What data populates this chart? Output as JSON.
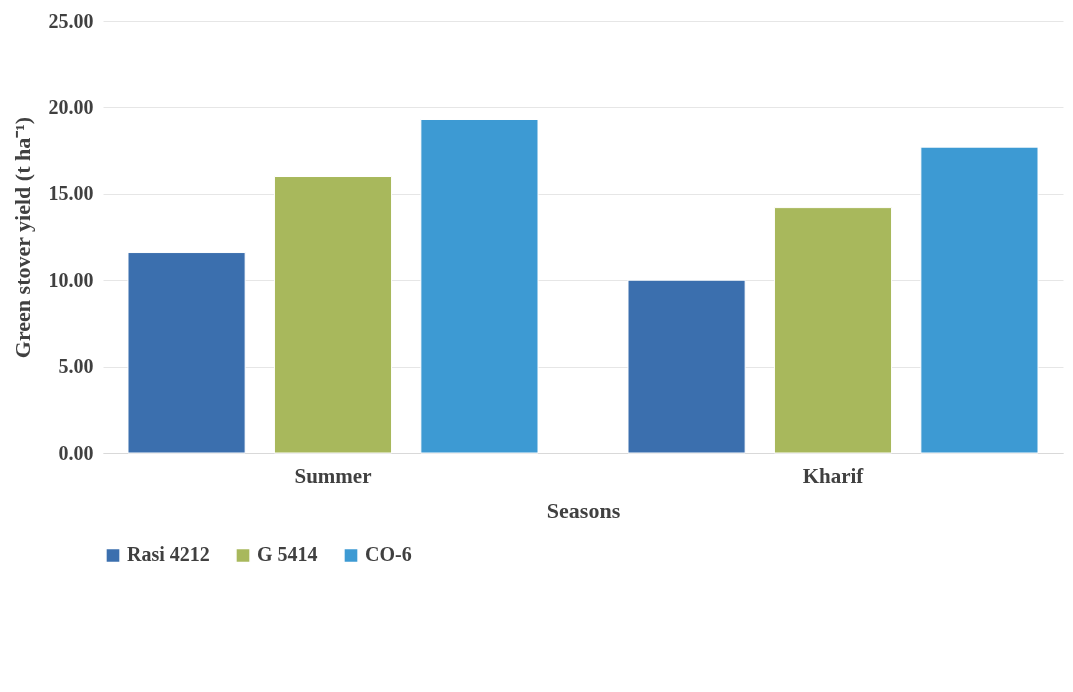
{
  "chart_data": {
    "type": "bar",
    "xlabel": "Seasons",
    "ylabel": "Green stover yield (t ha⁻¹)",
    "categories": [
      "Summer",
      "Kharif"
    ],
    "series": [
      {
        "name": "Rasi 4212",
        "color": "#3b6fae",
        "values": [
          11.6,
          10.0
        ]
      },
      {
        "name": "G 5414",
        "color": "#a8b85c",
        "values": [
          16.0,
          14.2
        ]
      },
      {
        "name": "CO-6",
        "color": "#3d9ad3",
        "values": [
          19.3,
          17.7
        ]
      }
    ],
    "ylim": [
      0,
      25
    ],
    "yticks": [
      {
        "value": 0,
        "label": "0.00"
      },
      {
        "value": 5,
        "label": "5.00"
      },
      {
        "value": 10,
        "label": "10.00"
      },
      {
        "value": 15,
        "label": "15.00"
      },
      {
        "value": 20,
        "label": "20.00"
      },
      {
        "value": 25,
        "label": "25.00"
      }
    ],
    "grid": "y",
    "legend": "bottom"
  }
}
